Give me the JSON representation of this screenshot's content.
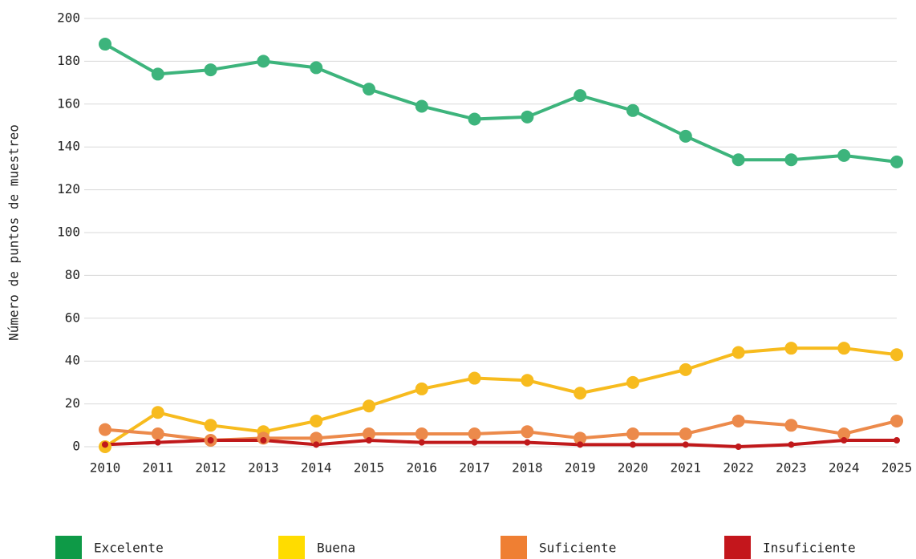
{
  "chart_data": {
    "type": "line",
    "y_label": "Número de puntos de muestreo",
    "categories": [
      "2010",
      "2011",
      "2012",
      "2013",
      "2014",
      "2015",
      "2016",
      "2017",
      "2018",
      "2019",
      "2020",
      "2021",
      "2022",
      "2023",
      "2024",
      "2025"
    ],
    "series": [
      {
        "name": "Excelente",
        "color": "#3db47c",
        "legend_color": "#0e9a47",
        "marker_size": 8,
        "values": [
          188,
          174,
          176,
          180,
          177,
          167,
          159,
          153,
          154,
          164,
          157,
          145,
          134,
          134,
          136,
          133
        ]
      },
      {
        "name": "Buena",
        "color": "#f7bb1e",
        "legend_color": "#ffdc00",
        "marker_size": 8,
        "values": [
          0,
          16,
          10,
          7,
          12,
          19,
          27,
          32,
          31,
          25,
          30,
          36,
          44,
          46,
          46,
          43
        ]
      },
      {
        "name": "Suficiente",
        "color": "#ec8a4b",
        "legend_color": "#ef7f33",
        "marker_size": 8,
        "values": [
          8,
          6,
          3,
          4,
          4,
          6,
          6,
          6,
          7,
          4,
          6,
          6,
          12,
          10,
          6,
          12
        ]
      },
      {
        "name": "Insuficiente",
        "color": "#c0191b",
        "legend_color": "#c4161c",
        "marker_size": 4,
        "values": [
          1,
          2,
          3,
          3,
          1,
          3,
          2,
          2,
          2,
          1,
          1,
          1,
          0,
          1,
          3,
          3
        ]
      }
    ],
    "ylim": [
      0,
      200
    ],
    "yticks": [
      0,
      20,
      40,
      60,
      80,
      100,
      120,
      140,
      160,
      180,
      200
    ],
    "grid": true
  }
}
